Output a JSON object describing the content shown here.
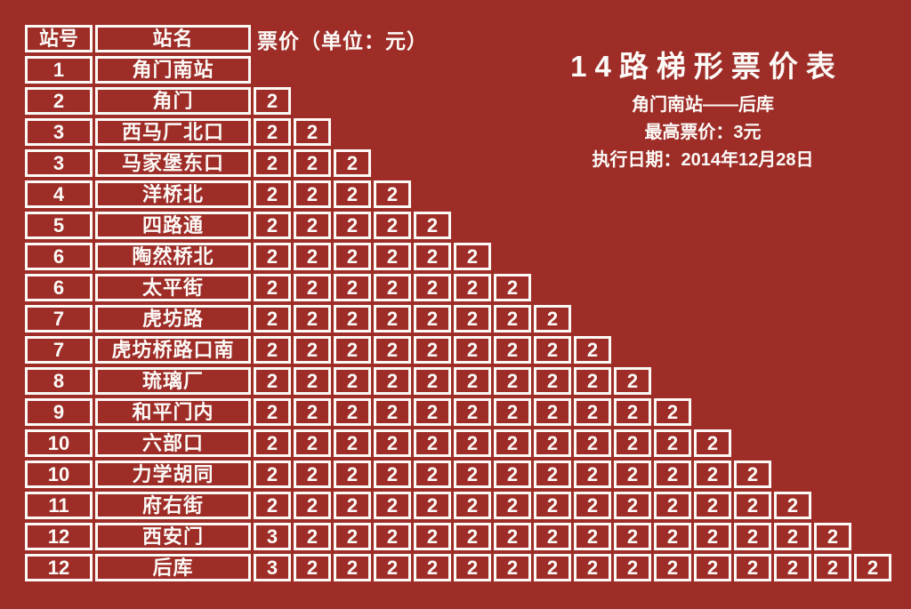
{
  "colors": {
    "background": "#9E2D28",
    "line": "#FCFAF7",
    "text": "#FCFAF7"
  },
  "info": {
    "title": "14路梯形票价表",
    "route": "角门南站——后库",
    "max_fare": "最高票价：3元",
    "effective_date": "执行日期：2014年12月28日"
  },
  "table": {
    "headers": {
      "station_no": "站号",
      "station_name": "站名",
      "fare": "票价（单位：元）"
    },
    "rows": [
      {
        "no": "1",
        "name": "角门南站",
        "fares": []
      },
      {
        "no": "2",
        "name": "角门",
        "fares": [
          "2"
        ]
      },
      {
        "no": "3",
        "name": "西马厂北口",
        "fares": [
          "2",
          "2"
        ]
      },
      {
        "no": "3",
        "name": "马家堡东口",
        "fares": [
          "2",
          "2",
          "2"
        ]
      },
      {
        "no": "4",
        "name": "洋桥北",
        "fares": [
          "2",
          "2",
          "2",
          "2"
        ]
      },
      {
        "no": "5",
        "name": "四路通",
        "fares": [
          "2",
          "2",
          "2",
          "2",
          "2"
        ]
      },
      {
        "no": "6",
        "name": "陶然桥北",
        "fares": [
          "2",
          "2",
          "2",
          "2",
          "2",
          "2"
        ]
      },
      {
        "no": "6",
        "name": "太平街",
        "fares": [
          "2",
          "2",
          "2",
          "2",
          "2",
          "2",
          "2"
        ]
      },
      {
        "no": "7",
        "name": "虎坊路",
        "fares": [
          "2",
          "2",
          "2",
          "2",
          "2",
          "2",
          "2",
          "2"
        ]
      },
      {
        "no": "7",
        "name": "虎坊桥路口南",
        "fares": [
          "2",
          "2",
          "2",
          "2",
          "2",
          "2",
          "2",
          "2",
          "2"
        ]
      },
      {
        "no": "8",
        "name": "琉璃厂",
        "fares": [
          "2",
          "2",
          "2",
          "2",
          "2",
          "2",
          "2",
          "2",
          "2",
          "2"
        ]
      },
      {
        "no": "9",
        "name": "和平门内",
        "fares": [
          "2",
          "2",
          "2",
          "2",
          "2",
          "2",
          "2",
          "2",
          "2",
          "2",
          "2"
        ]
      },
      {
        "no": "10",
        "name": "六部口",
        "fares": [
          "2",
          "2",
          "2",
          "2",
          "2",
          "2",
          "2",
          "2",
          "2",
          "2",
          "2",
          "2"
        ]
      },
      {
        "no": "10",
        "name": "力学胡同",
        "fares": [
          "2",
          "2",
          "2",
          "2",
          "2",
          "2",
          "2",
          "2",
          "2",
          "2",
          "2",
          "2",
          "2"
        ]
      },
      {
        "no": "11",
        "name": "府右街",
        "fares": [
          "2",
          "2",
          "2",
          "2",
          "2",
          "2",
          "2",
          "2",
          "2",
          "2",
          "2",
          "2",
          "2",
          "2"
        ]
      },
      {
        "no": "12",
        "name": "西安门",
        "fares": [
          "3",
          "2",
          "2",
          "2",
          "2",
          "2",
          "2",
          "2",
          "2",
          "2",
          "2",
          "2",
          "2",
          "2",
          "2"
        ]
      },
      {
        "no": "12",
        "name": "后库",
        "fares": [
          "3",
          "2",
          "2",
          "2",
          "2",
          "2",
          "2",
          "2",
          "2",
          "2",
          "2",
          "2",
          "2",
          "2",
          "2",
          "2"
        ]
      }
    ]
  }
}
